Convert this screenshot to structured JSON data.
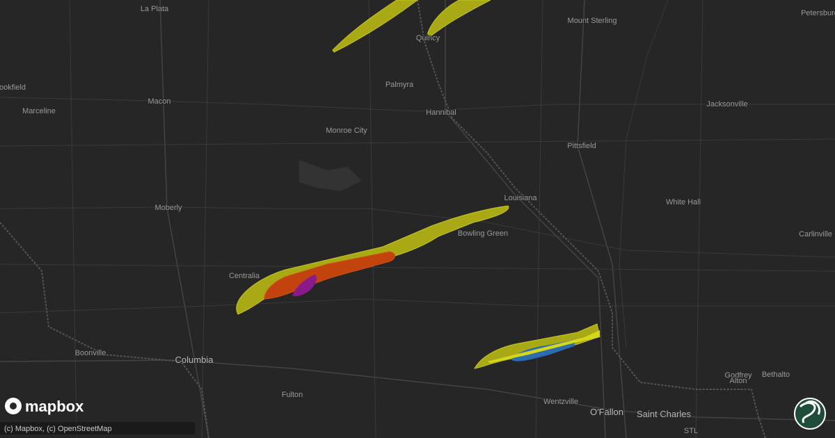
{
  "map": {
    "places": [
      "La Plata",
      "Quincy",
      "Mount Sterling",
      "Petersburg",
      "ookfield",
      "Marceline",
      "Macon",
      "Palmyra",
      "Hannibal",
      "Jacksonville",
      "Monroe City",
      "Pittsfield",
      "Louisiana",
      "White Hall",
      "Moberly",
      "Bowling Green",
      "Carlinville",
      "Centralia",
      "Boonville",
      "Columbia",
      "Godfrey",
      "Alton",
      "Bethalto",
      "Fulton",
      "Wentzville",
      "O'Fallon",
      "Saint Charles",
      "STL"
    ],
    "logo": "mapbox",
    "attribution": "(c) Mapbox, (c) OpenStreetMap"
  }
}
